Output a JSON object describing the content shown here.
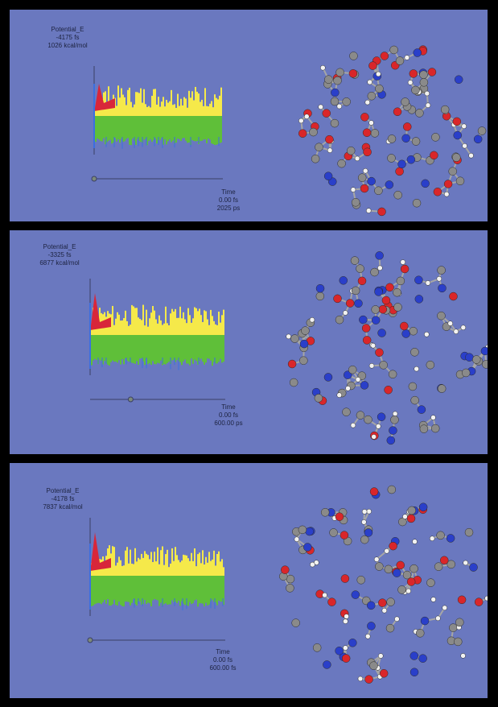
{
  "colors": {
    "background": "#6a78bf",
    "carbon": "#8a8a8a",
    "hydrogen": "#f2f2f2",
    "oxygen": "#d9262a",
    "nitrogen": "#2a3fc9",
    "bond": "#a6a6a6",
    "trace_yellow": "#f5e94a",
    "trace_green": "#5fbf39",
    "trace_red": "#d8263a",
    "trace_blue": "#3b6fe0"
  },
  "panels": [
    {
      "energy": {
        "title": "Potential_E",
        "value": "-4175 fs",
        "unit_value": "1026 kcal/mol"
      },
      "time": {
        "title": "Time",
        "value": "0.00 fs",
        "total": "2025 ps"
      },
      "timeline_position": 0.0
    },
    {
      "energy": {
        "title": "Potential_E",
        "value": "-3325 fs",
        "unit_value": "6877 kcal/mol"
      },
      "time": {
        "title": "Time",
        "value": "0.00 fs",
        "total": "600.00 ps"
      },
      "timeline_position": 0.3
    },
    {
      "energy": {
        "title": "Potential_E",
        "value": "-4178 fs",
        "unit_value": "7837 kcal/mol"
      },
      "time": {
        "title": "Time",
        "value": "0.00 fs",
        "total": "600.00 fs"
      },
      "timeline_position": 0.0
    }
  ]
}
